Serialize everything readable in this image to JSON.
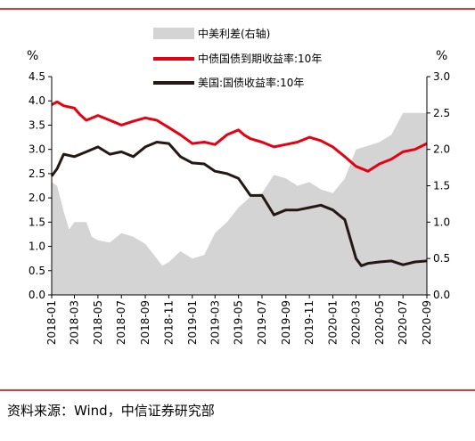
{
  "chart_data": {
    "type": "line",
    "left_axis_unit": "%",
    "right_axis_unit": "%",
    "ylim_left": [
      0.0,
      4.5
    ],
    "ylim_right": [
      0.0,
      3.0
    ],
    "yticks_left": [
      "0.0",
      "0.5",
      "1.0",
      "1.5",
      "2.0",
      "2.5",
      "3.0",
      "3.5",
      "4.0",
      "4.5"
    ],
    "yticks_right": [
      "0.0",
      "0.5",
      "1.0",
      "1.5",
      "2.0",
      "2.5",
      "3.0"
    ],
    "xticks": [
      "2018-01",
      "2018-03",
      "2018-05",
      "2018-07",
      "2018-09",
      "2018-11",
      "2019-01",
      "2019-03",
      "2019-05",
      "2019-07",
      "2019-09",
      "2019-11",
      "2020-01",
      "2020-03",
      "2020-05",
      "2020-07",
      "2020-09"
    ],
    "xlim": [
      "2018-01",
      "2020-09"
    ],
    "grid": false,
    "legend_position": "top-center",
    "series": [
      {
        "name": "中美利差(右轴)",
        "type": "area",
        "axis": "right",
        "color": "#d4d4d4",
        "points": [
          [
            "2018-01",
            1.55
          ],
          [
            "2018-01-15",
            1.5
          ],
          [
            "2018-02",
            1.15
          ],
          [
            "2018-02-15",
            0.9
          ],
          [
            "2018-03",
            1.0
          ],
          [
            "2018-04",
            1.0
          ],
          [
            "2018-04-15",
            0.8
          ],
          [
            "2018-05",
            0.75
          ],
          [
            "2018-06",
            0.72
          ],
          [
            "2018-07",
            0.85
          ],
          [
            "2018-08",
            0.8
          ],
          [
            "2018-09",
            0.7
          ],
          [
            "2018-10",
            0.5
          ],
          [
            "2018-10-15",
            0.4
          ],
          [
            "2018-11",
            0.45
          ],
          [
            "2018-12",
            0.6
          ],
          [
            "2019-01",
            0.5
          ],
          [
            "2019-02",
            0.55
          ],
          [
            "2019-03",
            0.85
          ],
          [
            "2019-04",
            1.0
          ],
          [
            "2019-05",
            1.2
          ],
          [
            "2019-06",
            1.35
          ],
          [
            "2019-07",
            1.4
          ],
          [
            "2019-08",
            1.65
          ],
          [
            "2019-09",
            1.6
          ],
          [
            "2019-10",
            1.5
          ],
          [
            "2019-11",
            1.55
          ],
          [
            "2019-12",
            1.45
          ],
          [
            "2020-01",
            1.4
          ],
          [
            "2020-02",
            1.6
          ],
          [
            "2020-03",
            2.0
          ],
          [
            "2020-04",
            2.05
          ],
          [
            "2020-05",
            2.1
          ],
          [
            "2020-06",
            2.2
          ],
          [
            "2020-07",
            2.5
          ],
          [
            "2020-08",
            2.5
          ],
          [
            "2020-09",
            2.5
          ]
        ]
      },
      {
        "name": "中债国债到期收益率:10年",
        "type": "line",
        "axis": "left",
        "color": "#e60012",
        "points": [
          [
            "2018-01",
            3.92
          ],
          [
            "2018-01-15",
            3.98
          ],
          [
            "2018-02",
            3.9
          ],
          [
            "2018-03",
            3.85
          ],
          [
            "2018-03-15",
            3.72
          ],
          [
            "2018-04",
            3.6
          ],
          [
            "2018-05",
            3.7
          ],
          [
            "2018-06",
            3.6
          ],
          [
            "2018-07",
            3.5
          ],
          [
            "2018-08",
            3.58
          ],
          [
            "2018-09",
            3.65
          ],
          [
            "2018-10",
            3.6
          ],
          [
            "2018-11",
            3.45
          ],
          [
            "2018-12",
            3.3
          ],
          [
            "2019-01",
            3.12
          ],
          [
            "2019-02",
            3.15
          ],
          [
            "2019-03",
            3.1
          ],
          [
            "2019-04",
            3.3
          ],
          [
            "2019-05",
            3.4
          ],
          [
            "2019-05-15",
            3.3
          ],
          [
            "2019-06",
            3.22
          ],
          [
            "2019-07",
            3.15
          ],
          [
            "2019-08",
            3.05
          ],
          [
            "2019-09",
            3.1
          ],
          [
            "2019-10",
            3.15
          ],
          [
            "2019-11",
            3.25
          ],
          [
            "2019-12",
            3.18
          ],
          [
            "2020-01",
            3.05
          ],
          [
            "2020-02",
            2.85
          ],
          [
            "2020-03",
            2.65
          ],
          [
            "2020-04",
            2.55
          ],
          [
            "2020-05",
            2.7
          ],
          [
            "2020-06",
            2.8
          ],
          [
            "2020-07",
            2.95
          ],
          [
            "2020-08",
            3.0
          ],
          [
            "2020-09",
            3.12
          ]
        ]
      },
      {
        "name": "美国:国债收益率:10年",
        "type": "line",
        "axis": "left",
        "color": "#231815",
        "points": [
          [
            "2018-01",
            2.45
          ],
          [
            "2018-01-15",
            2.6
          ],
          [
            "2018-02",
            2.9
          ],
          [
            "2018-03",
            2.85
          ],
          [
            "2018-04",
            2.95
          ],
          [
            "2018-05",
            3.05
          ],
          [
            "2018-06",
            2.9
          ],
          [
            "2018-07",
            2.95
          ],
          [
            "2018-08",
            2.85
          ],
          [
            "2018-09",
            3.05
          ],
          [
            "2018-10",
            3.15
          ],
          [
            "2018-11",
            3.12
          ],
          [
            "2018-12",
            2.85
          ],
          [
            "2019-01",
            2.72
          ],
          [
            "2019-02",
            2.7
          ],
          [
            "2019-03",
            2.55
          ],
          [
            "2019-04",
            2.5
          ],
          [
            "2019-05",
            2.4
          ],
          [
            "2019-06",
            2.05
          ],
          [
            "2019-07",
            2.05
          ],
          [
            "2019-08",
            1.65
          ],
          [
            "2019-09",
            1.75
          ],
          [
            "2019-10",
            1.75
          ],
          [
            "2019-11",
            1.8
          ],
          [
            "2019-12",
            1.85
          ],
          [
            "2020-01",
            1.75
          ],
          [
            "2020-02",
            1.55
          ],
          [
            "2020-03",
            0.75
          ],
          [
            "2020-03-15",
            0.6
          ],
          [
            "2020-04",
            0.65
          ],
          [
            "2020-05",
            0.68
          ],
          [
            "2020-06",
            0.7
          ],
          [
            "2020-07",
            0.62
          ],
          [
            "2020-08",
            0.68
          ],
          [
            "2020-09",
            0.7
          ]
        ]
      }
    ]
  },
  "source": "资料来源：Wind，中信证券研究部",
  "colors": {
    "rule": "#c00000",
    "axis": "#000000"
  }
}
